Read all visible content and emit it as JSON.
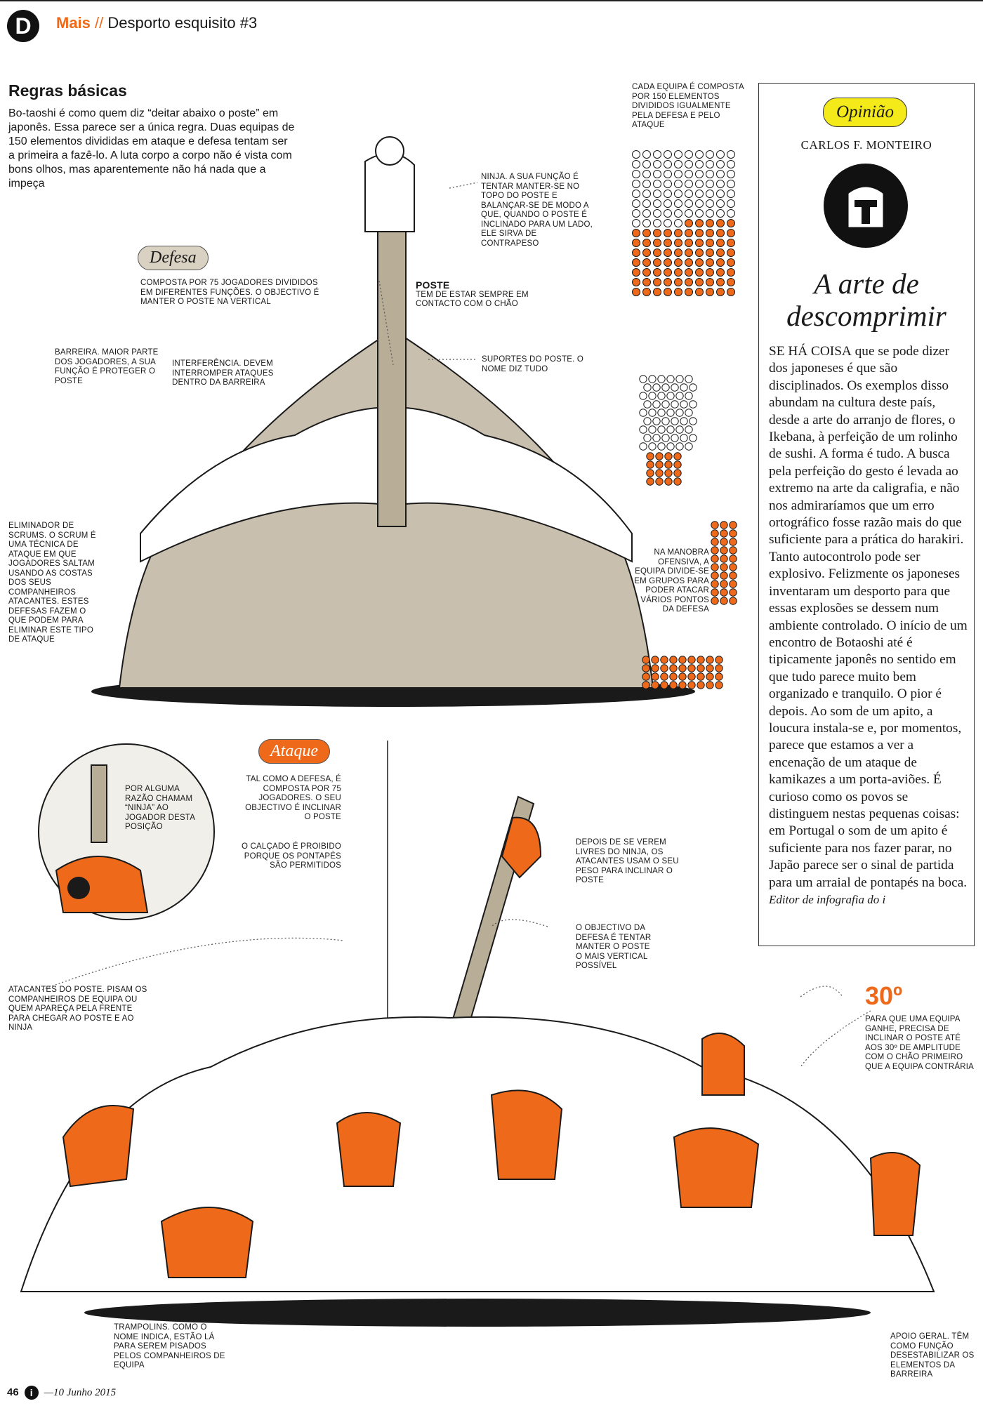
{
  "header": {
    "section": "Mais",
    "separator": "//",
    "title": "Desporto esquisito #3"
  },
  "intro": {
    "heading": "Regras básicas",
    "text": "Bo-taoshi é como quem diz “deitar abaixo o poste” em japonês. Essa parece ser a única regra. Duas equipas de 150 elementos divididas em ataque e defesa tentam ser a primeira a fazê-lo. A luta corpo a corpo não é vista com bons olhos, mas aparentemente não há nada que a impeça"
  },
  "tags": {
    "defesa": "Defesa",
    "ataque": "Ataque"
  },
  "captions": {
    "ninja": "Ninja. A sua função é tentar manter-se no topo do poste e balançar-se de modo a que, quando o poste é inclinado para um lado, ele sirva de contrapeso",
    "equipa": "Cada equipa é composta por 150 elementos divididos igualmente pela defesa e pelo ataque",
    "poste_title": "Poste",
    "poste": "Tem de estar sempre em contacto com o chão",
    "defesa": "Composta por 75 jogadores divididos em diferentes funções. O objectivo é manter o poste na vertical",
    "barreira": "Barreira. Maior parte dos jogadores, a sua função é proteger o poste",
    "interferencia": "Interferência. Devem interromper ataques dentro da barreira",
    "suportes": "Suportes do poste. O nome diz tudo",
    "eliminador": "Eliminador de scrums. O scrum é uma técnica de ataque em que jogadores saltam usando as costas dos seus companheiros atacantes. Estes defesas fazem o que podem para eliminar este tipo de ataque",
    "manobra": "Na manobra ofensiva, a equipa divide-se em grupos para poder atacar vários pontos da defesa",
    "ninja_nome": "Por alguma razão chamam “ninja” ao jogador desta posição",
    "ataque": "Tal como a defesa, é composta por 75 jogadores. O seu objectivo é inclinar o poste",
    "calcado": "O calçado é proibido porque os pontapés são permitidos",
    "livres": "Depois de se verem livres do ninja, os atacantes usam o seu peso para inclinar o poste",
    "objectivo": "O objectivo da defesa é tentar manter o poste o mais vertical possível",
    "atacantes": "Atacantes do poste. Pisam os companheiros de equipa ou quem apareça pela frente para chegar ao poste e ao ninja",
    "angulo_value": "30º",
    "angulo": "Para que uma equipa ganhe, precisa de inclinar o poste até aos 30º de amplitude com o chão primeiro que a equipa contrária",
    "trampolins": "Trampolins. Como o nome indica, estão lá para serem pisados pelos companheiros de equipa",
    "apoio": "Apoio geral. Têm como função desestabilizar os elementos da barreira"
  },
  "opinion": {
    "badge": "Opinião",
    "author": "CARLOS F. MONTEIRO",
    "headline": "A arte de descomprimir",
    "lead": "SE HÁ COISA",
    "body": " que se pode dizer dos japoneses é que são disciplinados. Os exemplos disso abundam na cultura deste país, desde a arte do arranjo de flores, o Ikebana, à perfeição de um rolinho de sushi. A forma é tudo. A busca pela perfeição do gesto é levada ao extremo na arte da caligrafia, e não nos admiraríamos que um erro ortográfico fosse razão mais do que suficiente para a prática do harakiri. Tanto autocontrolo pode ser explosivo. Felizmente os japoneses inventaram um desporto para que essas explosões se dessem num ambiente controlado. O início de um encontro de Botaoshi até é tipicamente japonês no sentido em que tudo parece muito bem organizado e tranquilo. O pior é depois. Ao som de um apito, a loucura instala-se e, por momentos, parece que estamos a ver a encenação de um ataque de kamikazes a um porta-aviões. É curioso como os povos se distinguem nestas pequenas coisas: em Portugal o som de um apito é suficiente para nos fazer parar, no Japão parece ser o sinal de partida para um arraial de pontapés na boca.",
    "signature": "Editor de infografia do i"
  },
  "footer": {
    "page": "46",
    "date": "—10 Junho 2015"
  },
  "colors": {
    "orange": "#ee6a1a",
    "khaki": "#c8bfae",
    "yellow": "#f4ea1a",
    "ink": "#1a1a1a"
  }
}
